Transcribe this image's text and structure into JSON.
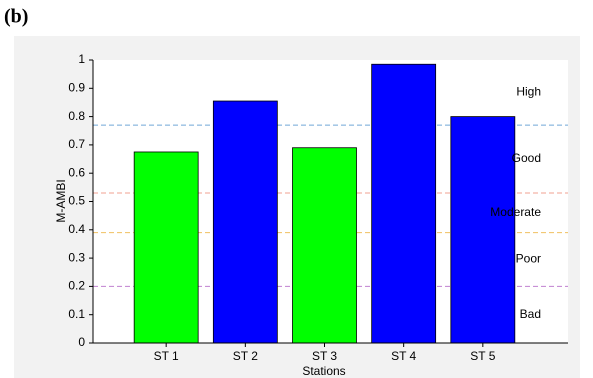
{
  "panel_label": "(b)",
  "chart_data": {
    "type": "bar",
    "categories": [
      "ST 1",
      "ST 2",
      "ST 3",
      "ST 4",
      "ST 5"
    ],
    "values": [
      0.675,
      0.855,
      0.69,
      0.985,
      0.8
    ],
    "colors": [
      "#00ff00",
      "#0000ff",
      "#00ff00",
      "#0000ff",
      "#0000ff"
    ],
    "x_label": "Stations",
    "y_label": "M-AMBI",
    "ylim": [
      0,
      1
    ],
    "yticks": [
      0,
      0.1,
      0.2,
      0.3,
      0.4,
      0.5,
      0.6,
      0.7,
      0.8,
      0.9,
      1
    ],
    "thresholds": [
      {
        "value": 0.2,
        "color": "#c080d0"
      },
      {
        "value": 0.39,
        "color": "#f0c060"
      },
      {
        "value": 0.53,
        "color": "#f0a090"
      },
      {
        "value": 0.77,
        "color": "#70a8d8"
      }
    ],
    "classes": [
      "Bad",
      "Poor",
      "Moderate",
      "Good",
      "High"
    ]
  }
}
